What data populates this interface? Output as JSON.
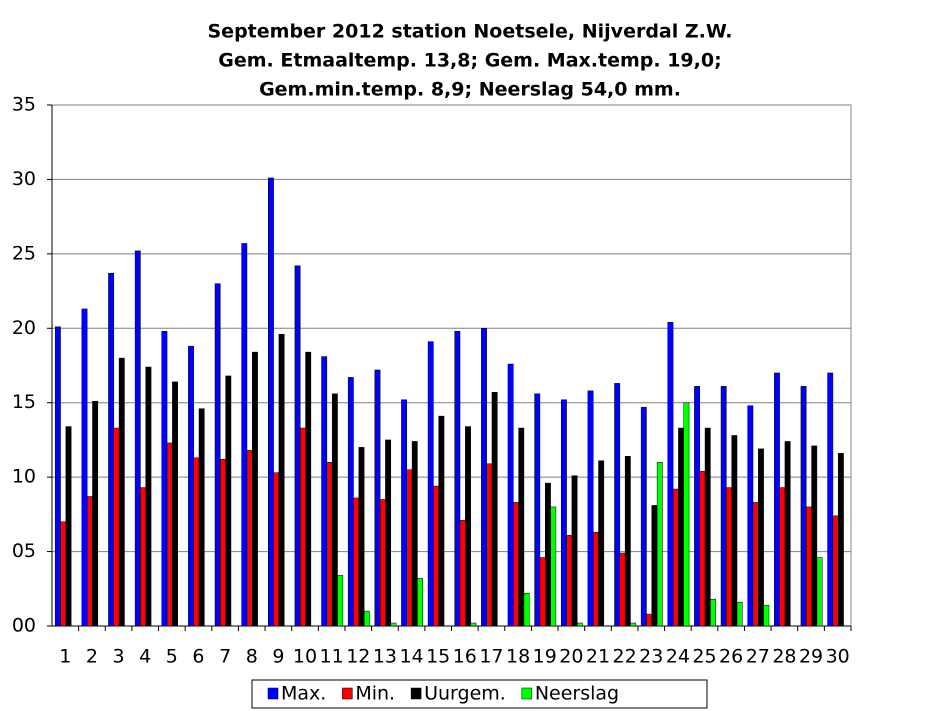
{
  "chart_data": {
    "type": "bar",
    "title": [
      "September 2012 station Noetsele, Nijverdal Z.W.",
      "Gem. Etmaaltemp. 13,8; Gem. Max.temp. 19,0;",
      "Gem.min.temp. 8,9; Neerslag 54,0  mm."
    ],
    "categories": [
      "1",
      "2",
      "3",
      "4",
      "5",
      "6",
      "7",
      "8",
      "9",
      "10",
      "11",
      "12",
      "13",
      "14",
      "15",
      "16",
      "17",
      "18",
      "19",
      "20",
      "21",
      "22",
      "23",
      "24",
      "25",
      "26",
      "27",
      "28",
      "29",
      "30"
    ],
    "series": [
      {
        "name": "Max.",
        "color": "#0000ff",
        "values": [
          20.1,
          21.3,
          23.7,
          25.2,
          19.8,
          18.8,
          23.0,
          25.7,
          30.1,
          24.2,
          18.1,
          16.7,
          17.2,
          15.2,
          19.1,
          19.8,
          20.0,
          17.6,
          15.6,
          15.2,
          15.8,
          16.3,
          14.7,
          20.4,
          16.1,
          16.1,
          14.8,
          17.0,
          16.1,
          17.0
        ]
      },
      {
        "name": "Min.",
        "color": "#ff0000",
        "values": [
          7.0,
          8.7,
          13.3,
          9.3,
          12.3,
          11.3,
          11.2,
          11.8,
          10.3,
          13.3,
          11.0,
          8.6,
          8.5,
          10.5,
          9.4,
          7.1,
          10.9,
          8.3,
          4.6,
          6.1,
          6.3,
          4.9,
          0.8,
          9.2,
          10.4,
          9.3,
          8.3,
          9.3,
          8.0,
          7.4
        ]
      },
      {
        "name": "Uurgem.",
        "color": "#000000",
        "values": [
          13.4,
          15.1,
          18.0,
          17.4,
          16.4,
          14.6,
          16.8,
          18.4,
          19.6,
          18.4,
          15.6,
          12.0,
          12.5,
          12.4,
          14.1,
          13.4,
          15.7,
          13.3,
          9.6,
          10.1,
          11.1,
          11.4,
          8.1,
          13.3,
          13.3,
          12.8,
          11.9,
          12.4,
          12.1,
          11.6
        ]
      },
      {
        "name": "Neerslag",
        "color": "#00ff00",
        "values": [
          0,
          0,
          0,
          0,
          0,
          0,
          0,
          0,
          0,
          0,
          3.4,
          1.0,
          0.2,
          3.2,
          0,
          0.2,
          0,
          2.2,
          8.0,
          0.2,
          0,
          0.2,
          11.0,
          15.0,
          1.8,
          1.6,
          1.4,
          0,
          4.6,
          0
        ]
      }
    ],
    "ylim": [
      0,
      35
    ],
    "yticks": [
      {
        "value": 0,
        "label": "00"
      },
      {
        "value": 5,
        "label": "05"
      },
      10,
      15,
      20,
      25,
      30,
      35
    ],
    "grid": true,
    "legend": "bottom"
  }
}
